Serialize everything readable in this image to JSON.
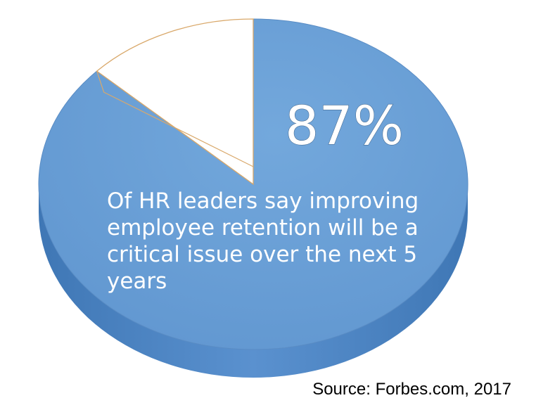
{
  "chart_data": {
    "type": "pie",
    "slices": [
      {
        "label": "87%",
        "value": 87,
        "color": "#6a9fd5"
      },
      {
        "label": "",
        "value": 13,
        "color": "#ffffff"
      }
    ],
    "highlight_value_label": "87%",
    "annotation_lines": [
      "Of HR leaders say improving",
      "employee retention will be a",
      "critical issue over the next 5",
      "years"
    ],
    "legend": "none",
    "grid": false
  },
  "source_text": "Source: Forbes.com, 2017",
  "colors": {
    "main_slice": "#6a9fd5",
    "main_slice_side": "#4f86c4",
    "minor_slice": "#ffffff",
    "minor_slice_outline": "#d9a86a"
  }
}
